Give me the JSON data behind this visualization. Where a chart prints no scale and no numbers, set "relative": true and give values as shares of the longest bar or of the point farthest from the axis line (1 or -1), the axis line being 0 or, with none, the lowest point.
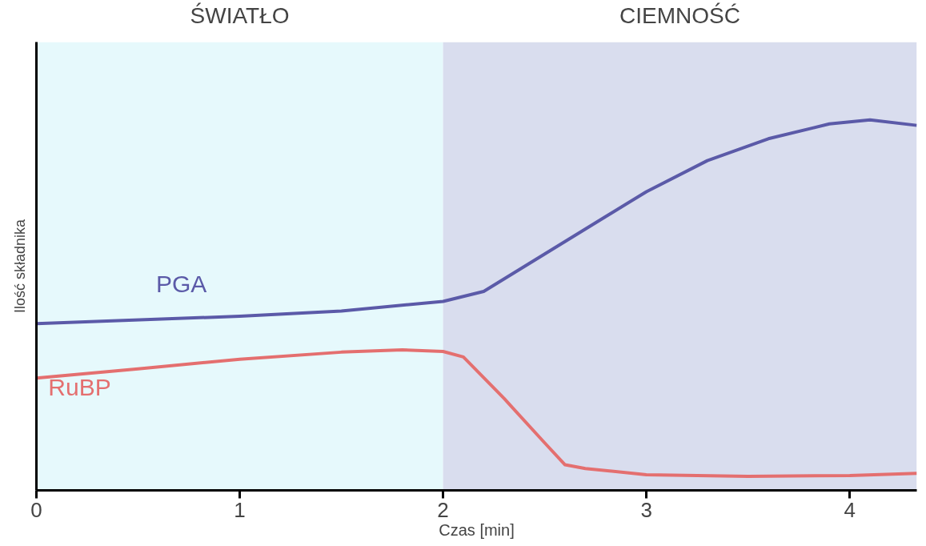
{
  "chart_data": {
    "type": "line",
    "relative": true,
    "xlabel": "Czas [min]",
    "ylabel": "Ilość składnika",
    "xlim": [
      0,
      4.33
    ],
    "xticks": [
      0,
      1,
      2,
      3,
      4
    ],
    "grid": false,
    "marker": "none",
    "line_style": "solid",
    "bands": [
      {
        "axis": "x",
        "from": 0,
        "to": 2,
        "label": "ŚWIATŁO",
        "color": "#e6f9fc"
      },
      {
        "axis": "x",
        "from": 2,
        "to": 4.33,
        "label": "CIEMNOŚĆ",
        "color": "#d9ddee"
      }
    ],
    "series": [
      {
        "name": "PGA",
        "color": "#5b5aa8",
        "x": [
          0,
          1,
          1.5,
          2,
          2.2,
          2.5,
          2.8,
          3,
          3.3,
          3.6,
          3.9,
          4.1,
          4.33
        ],
        "values": [
          0.45,
          0.47,
          0.484,
          0.51,
          0.537,
          0.638,
          0.739,
          0.806,
          0.89,
          0.949,
          0.989,
          1.0,
          0.985
        ]
      },
      {
        "name": "RuBP",
        "color": "#e46f6f",
        "x": [
          0,
          0.5,
          1,
          1.5,
          1.8,
          2,
          2.1,
          2.3,
          2.5,
          2.6,
          2.7,
          3,
          3.5,
          4,
          4.33
        ],
        "values": [
          0.303,
          0.328,
          0.354,
          0.373,
          0.379,
          0.375,
          0.36,
          0.248,
          0.128,
          0.069,
          0.059,
          0.042,
          0.038,
          0.04,
          0.046
        ]
      }
    ]
  }
}
